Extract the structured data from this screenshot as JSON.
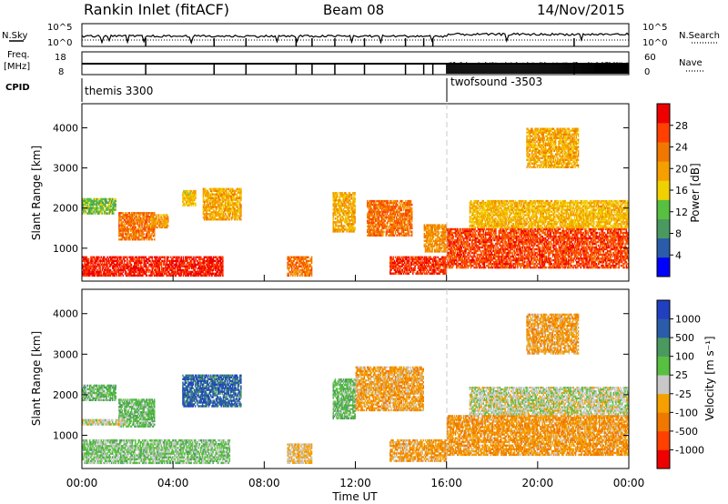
{
  "header": {
    "station": "Rankin Inlet (fitACF)",
    "beam": "Beam 08",
    "date": "14/Nov/2015"
  },
  "status_panels": {
    "nsky_label": "N.Sky",
    "nsky_ticks": [
      "10^5",
      "10^0"
    ],
    "nsearch_label": "N.Search",
    "nsearch_ticks": [
      "10^5",
      "10^0"
    ],
    "freq_label_1": "Freq.",
    "freq_label_2": "[MHz]",
    "freq_ticks": [
      "18",
      "8"
    ],
    "nave_label": "Nave",
    "nave_ticks": [
      "60",
      "0"
    ],
    "cpid_label": "CPID",
    "cpid_modes": [
      {
        "name": "themis 3300",
        "start_hour": 0
      },
      {
        "name": "twofsound -3503",
        "start_hour": 16
      }
    ]
  },
  "colors": {
    "power_scale": [
      "#0000ff",
      "#2a5caa",
      "#4a9a60",
      "#58c040",
      "#f0d000",
      "#f5a000",
      "#f07800",
      "#ff4000",
      "#ee0000"
    ],
    "velocity_scale": [
      "#ee0000",
      "#ff4000",
      "#f07800",
      "#f5a000",
      "#c8c8c8",
      "#58c040",
      "#4a9a60",
      "#2a5caa",
      "#2040c0"
    ]
  },
  "chart_data": [
    {
      "type": "heatmap",
      "name": "power",
      "xlabel": "",
      "ylabel": "Slant Range [km]",
      "x_range_hours": [
        0,
        24
      ],
      "ylim": [
        180,
        4600
      ],
      "y_ticks": [
        "4000",
        "3000",
        "2000",
        "1000"
      ],
      "y_tick_values": [
        4000,
        3000,
        2000,
        1000
      ],
      "colorbar": {
        "label": "Power [dB]",
        "ticks": [
          "28",
          "24",
          "20",
          "16",
          "12",
          "8",
          "4"
        ],
        "range": [
          0,
          30
        ]
      },
      "regions": [
        {
          "t0": 0.0,
          "t1": 6.2,
          "r0": 300,
          "r1": 800,
          "v": 27
        },
        {
          "t0": 0.0,
          "t1": 1.5,
          "r0": 1850,
          "r1": 2250,
          "v": 12
        },
        {
          "t0": 1.6,
          "t1": 3.2,
          "r0": 1200,
          "r1": 1900,
          "v": 22
        },
        {
          "t0": 3.0,
          "t1": 3.8,
          "r0": 1500,
          "r1": 1850,
          "v": 19
        },
        {
          "t0": 5.3,
          "t1": 7.0,
          "r0": 1700,
          "r1": 2500,
          "v": 18
        },
        {
          "t0": 4.4,
          "t1": 5.0,
          "r0": 2050,
          "r1": 2450,
          "v": 16
        },
        {
          "t0": 9.0,
          "t1": 10.1,
          "r0": 300,
          "r1": 800,
          "v": 22
        },
        {
          "t0": 11.0,
          "t1": 12.0,
          "r0": 1400,
          "r1": 2400,
          "v": 18
        },
        {
          "t0": 12.5,
          "t1": 14.5,
          "r0": 1300,
          "r1": 2200,
          "v": 22
        },
        {
          "t0": 13.5,
          "t1": 16.0,
          "r0": 350,
          "r1": 800,
          "v": 26
        },
        {
          "t0": 15.0,
          "t1": 16.0,
          "r0": 900,
          "r1": 1600,
          "v": 20
        },
        {
          "t0": 16.0,
          "t1": 24.0,
          "r0": 500,
          "r1": 1500,
          "v": 25
        },
        {
          "t0": 17.0,
          "t1": 24.0,
          "r0": 1500,
          "r1": 2200,
          "v": 17
        },
        {
          "t0": 19.5,
          "t1": 21.8,
          "r0": 3000,
          "r1": 4000,
          "v": 18
        }
      ]
    },
    {
      "type": "heatmap",
      "name": "velocity",
      "xlabel": "Time UT",
      "ylabel": "Slant Range [km]",
      "x_range_hours": [
        0,
        24
      ],
      "x_ticks": [
        "00:00",
        "04:00",
        "08:00",
        "12:00",
        "16:00",
        "20:00",
        "00:00"
      ],
      "x_tick_values": [
        0,
        4,
        8,
        12,
        16,
        20,
        24
      ],
      "ylim": [
        180,
        4600
      ],
      "y_ticks": [
        "4000",
        "3000",
        "2000",
        "1000"
      ],
      "y_tick_values": [
        4000,
        3000,
        2000,
        1000
      ],
      "colorbar": {
        "label": "Velocity [m s⁻¹]",
        "ticks": [
          "1000",
          "500",
          "100",
          "25",
          "-25",
          "-100",
          "-500",
          "-1000"
        ],
        "range": [
          -1200,
          1200
        ]
      },
      "regions": [
        {
          "t0": 0.0,
          "t1": 6.5,
          "r0": 300,
          "r1": 900,
          "v": 200
        },
        {
          "t0": 0.0,
          "t1": 1.5,
          "r0": 1850,
          "r1": 2250,
          "v": 300
        },
        {
          "t0": 1.6,
          "t1": 3.2,
          "r0": 1200,
          "r1": 1900,
          "v": 300
        },
        {
          "t0": 4.4,
          "t1": 7.0,
          "r0": 1700,
          "r1": 2500,
          "v": 800
        },
        {
          "t0": 0.0,
          "t1": 2.0,
          "r0": 1250,
          "r1": 1400,
          "v": 0
        },
        {
          "t0": 9.0,
          "t1": 10.1,
          "r0": 300,
          "r1": 800,
          "v": -150
        },
        {
          "t0": 11.0,
          "t1": 12.0,
          "r0": 1400,
          "r1": 2400,
          "v": 300
        },
        {
          "t0": 12.0,
          "t1": 15.0,
          "r0": 1600,
          "r1": 2700,
          "v": -300
        },
        {
          "t0": 13.5,
          "t1": 16.0,
          "r0": 350,
          "r1": 900,
          "v": -300
        },
        {
          "t0": 16.0,
          "t1": 24.0,
          "r0": 500,
          "r1": 1500,
          "v": -350
        },
        {
          "t0": 17.0,
          "t1": 24.0,
          "r0": 1500,
          "r1": 2200,
          "v": 20
        },
        {
          "t0": 19.5,
          "t1": 21.8,
          "r0": 3000,
          "r1": 4000,
          "v": -300
        }
      ]
    }
  ]
}
